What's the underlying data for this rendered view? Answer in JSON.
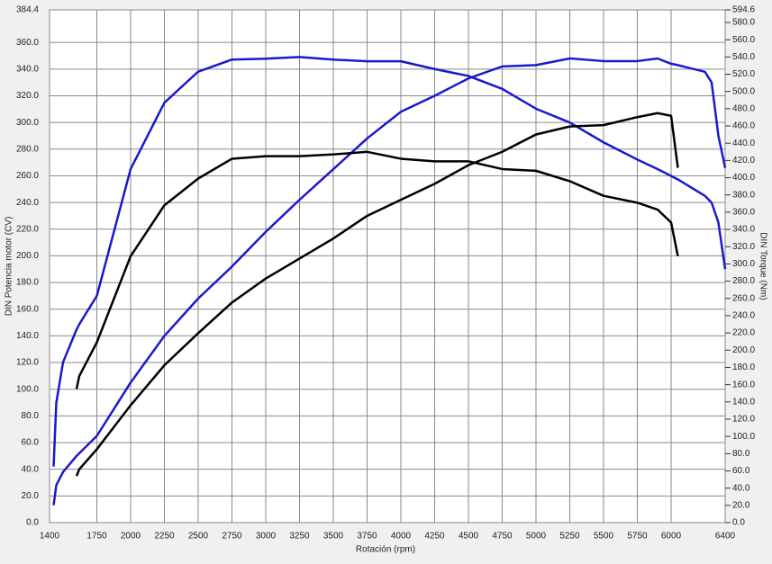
{
  "chart_data": {
    "type": "line",
    "xlabel": "Rotación (rpm)",
    "ylabel": "DIN Potencia motor (CV)",
    "y2label": "DIN Torque (Nm)",
    "grid": true,
    "xlim": [
      1400,
      6400
    ],
    "xticks": [
      1400,
      1750,
      2000,
      2250,
      2500,
      2750,
      3000,
      3250,
      3500,
      3750,
      4000,
      4250,
      4500,
      4750,
      5000,
      5250,
      5500,
      5750,
      6000,
      6400
    ],
    "ylim": [
      0,
      384.4
    ],
    "yticks": [
      {
        "value": 0,
        "label": "0.0"
      },
      {
        "value": 20,
        "label": "20.0"
      },
      {
        "value": 40,
        "label": "40.0"
      },
      {
        "value": 60,
        "label": "60.0"
      },
      {
        "value": 80,
        "label": "80.0"
      },
      {
        "value": 100,
        "label": "100.0"
      },
      {
        "value": 120,
        "label": "120.0"
      },
      {
        "value": 140,
        "label": "140.0"
      },
      {
        "value": 160,
        "label": "160.0"
      },
      {
        "value": 180,
        "label": "180.0"
      },
      {
        "value": 200,
        "label": "200.0"
      },
      {
        "value": 220,
        "label": "220.0"
      },
      {
        "value": 240,
        "label": "240.0"
      },
      {
        "value": 260,
        "label": "260.0"
      },
      {
        "value": 280,
        "label": "280.0"
      },
      {
        "value": 300,
        "label": "300.0"
      },
      {
        "value": 320,
        "label": "320.0"
      },
      {
        "value": 340,
        "label": "340.0"
      },
      {
        "value": 360,
        "label": "360.0"
      },
      384.4
    ],
    "y2lim": [
      0,
      594.6
    ],
    "y2ticks": [
      {
        "value": 0,
        "label": "0.0"
      },
      {
        "value": 20,
        "label": "20.0"
      },
      {
        "value": 40,
        "label": "40.0"
      },
      {
        "value": 60,
        "label": "60.0"
      },
      {
        "value": 80,
        "label": "80.0"
      },
      {
        "value": 100,
        "label": "100.0"
      },
      {
        "value": 120,
        "label": "120.0"
      },
      {
        "value": 140,
        "label": "140.0"
      },
      {
        "value": 160,
        "label": "160.0"
      },
      {
        "value": 180,
        "label": "180.0"
      },
      {
        "value": 200,
        "label": "200.0"
      },
      {
        "value": 220,
        "label": "220.0"
      },
      {
        "value": 240,
        "label": "240.0"
      },
      {
        "value": 260,
        "label": "260.0"
      },
      {
        "value": 280,
        "label": "280.0"
      },
      {
        "value": 300,
        "label": "300.0"
      },
      {
        "value": 320,
        "label": "320.0"
      },
      {
        "value": 340,
        "label": "340.0"
      },
      {
        "value": 360,
        "label": "360.0"
      },
      {
        "value": 380,
        "label": "380.0"
      },
      {
        "value": 400,
        "label": "400.0"
      },
      {
        "value": 420,
        "label": "420.0"
      },
      {
        "value": 440,
        "label": "440.0"
      },
      {
        "value": 460,
        "label": "460.0"
      },
      {
        "value": 480,
        "label": "480.0"
      },
      {
        "value": 500,
        "label": "500.0"
      },
      {
        "value": 520,
        "label": "520.0"
      },
      {
        "value": 540,
        "label": "540.0"
      },
      {
        "value": 560,
        "label": "560.0"
      },
      {
        "value": 580,
        "label": "580.0"
      },
      594.6
    ],
    "x": [
      1430,
      1450,
      1500,
      1600,
      1620,
      1750,
      2000,
      2250,
      2500,
      2750,
      3000,
      3250,
      3500,
      3750,
      4000,
      4250,
      4500,
      4750,
      5000,
      5250,
      5500,
      5750,
      5900,
      6000,
      6050,
      6250,
      6300,
      6350,
      6400
    ],
    "series": [
      {
        "color": "#1a1acc",
        "axis": "y2",
        "values": [
          65,
          139,
          186,
          224,
          230,
          263,
          410,
          487,
          523,
          537,
          538,
          540,
          537,
          535,
          535,
          526,
          518,
          503,
          480,
          464,
          441,
          421,
          410,
          402,
          398,
          379,
          371,
          348,
          294
        ]
      },
      {
        "color": "#1a1acc",
        "values": [
          13,
          28,
          38,
          50,
          52,
          65,
          105,
          140,
          168,
          192,
          218,
          242,
          265,
          288,
          308,
          320,
          333,
          342,
          343,
          348,
          346,
          346,
          348,
          344,
          343,
          338,
          330,
          290,
          266
        ]
      },
      {
        "color": "#000000",
        "axis": "y2",
        "values": [
          null,
          null,
          null,
          155,
          170,
          209,
          309,
          368,
          399,
          422,
          425,
          425,
          427,
          430,
          422,
          419,
          419,
          410,
          408,
          396,
          379,
          371,
          363,
          348,
          309,
          null,
          null,
          null,
          null
        ]
      },
      {
        "color": "#000000",
        "values": [
          null,
          null,
          null,
          35,
          40,
          55,
          88,
          118,
          142,
          165,
          183,
          198,
          213,
          230,
          242,
          254,
          268,
          278,
          291,
          297,
          298,
          304,
          307,
          305,
          266,
          null,
          null,
          null,
          null
        ]
      }
    ]
  }
}
